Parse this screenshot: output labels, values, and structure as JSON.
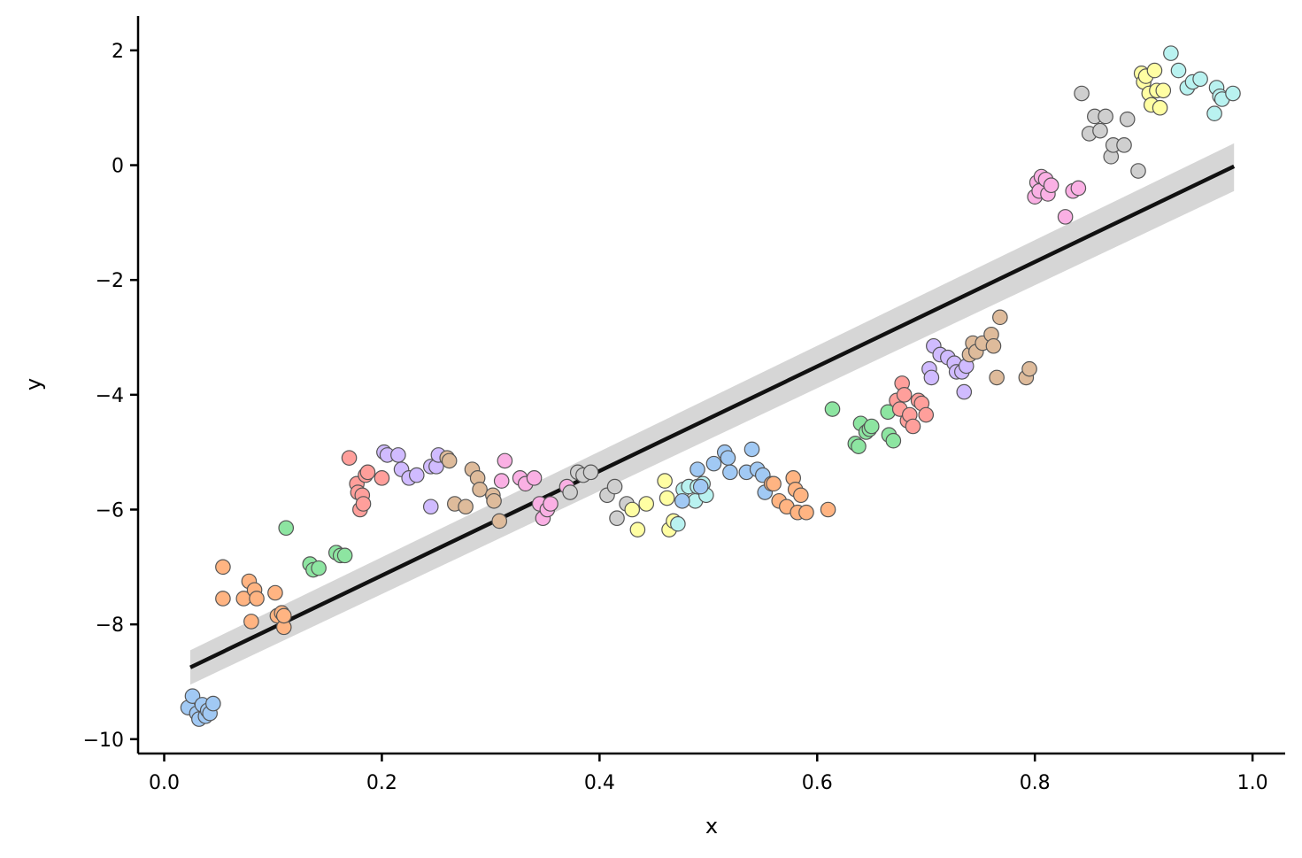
{
  "chart_data": {
    "type": "scatter",
    "xlabel": "x",
    "ylabel": "y",
    "xlim": [
      -0.024,
      1.03
    ],
    "ylim": [
      -10.25,
      2.6
    ],
    "x_ticks": [
      0.0,
      0.2,
      0.4,
      0.6,
      0.8,
      1.0
    ],
    "x_tick_labels": [
      "0.0",
      "0.2",
      "0.4",
      "0.6",
      "0.8",
      "1.0"
    ],
    "y_ticks": [
      -10,
      -8,
      -6,
      -4,
      -2,
      0,
      2
    ],
    "y_tick_labels": [
      "−10",
      "−8",
      "−6",
      "−4",
      "−2",
      "0",
      "2"
    ],
    "grid": false,
    "regression": {
      "x": [
        0.024,
        0.983
      ],
      "y": [
        -8.75,
        -0.02
      ],
      "ci_lower": [
        -9.05,
        -0.45
      ],
      "ci_upper": [
        -8.45,
        0.38
      ],
      "line_color": "#111111",
      "band_color": "#d6d6d6"
    },
    "series": [
      {
        "color": "#a1c9f4",
        "x": [
          0.022,
          0.026,
          0.03,
          0.032,
          0.035,
          0.038,
          0.04,
          0.042,
          0.045
        ],
        "y": [
          -9.45,
          -9.25,
          -9.55,
          -9.65,
          -9.4,
          -9.6,
          -9.5,
          -9.55,
          -9.38
        ]
      },
      {
        "color": "#ffb482",
        "x": [
          0.054,
          0.054,
          0.073,
          0.078,
          0.08,
          0.083,
          0.085,
          0.102,
          0.104,
          0.108,
          0.11,
          0.11
        ],
        "y": [
          -7.0,
          -7.55,
          -7.55,
          -7.25,
          -7.95,
          -7.4,
          -7.55,
          -7.45,
          -7.85,
          -7.8,
          -8.05,
          -7.85
        ]
      },
      {
        "color": "#8de5a1",
        "x": [
          0.112,
          0.134,
          0.137,
          0.142,
          0.158,
          0.162,
          0.166
        ],
        "y": [
          -6.32,
          -6.95,
          -7.05,
          -7.02,
          -6.75,
          -6.8,
          -6.8
        ]
      },
      {
        "color": "#ff9f9b",
        "x": [
          0.17,
          0.177,
          0.178,
          0.18,
          0.182,
          0.183,
          0.185,
          0.187,
          0.2
        ],
        "y": [
          -5.1,
          -5.55,
          -5.7,
          -6.0,
          -5.75,
          -5.9,
          -5.4,
          -5.35,
          -5.45
        ]
      },
      {
        "color": "#d0bbff",
        "x": [
          0.202,
          0.205,
          0.215,
          0.218,
          0.225,
          0.232,
          0.245,
          0.245,
          0.25,
          0.252
        ],
        "y": [
          -5.0,
          -5.05,
          -5.05,
          -5.3,
          -5.45,
          -5.4,
          -5.25,
          -5.95,
          -5.25,
          -5.05
        ]
      },
      {
        "color": "#debb9b",
        "x": [
          0.26,
          0.262,
          0.267,
          0.277,
          0.283,
          0.288,
          0.29,
          0.302,
          0.303,
          0.308
        ],
        "y": [
          -5.1,
          -5.15,
          -5.9,
          -5.95,
          -5.3,
          -5.45,
          -5.65,
          -5.75,
          -5.85,
          -6.2
        ]
      },
      {
        "color": "#fab0e4",
        "x": [
          0.31,
          0.313,
          0.327,
          0.332,
          0.34,
          0.345,
          0.348,
          0.352,
          0.355,
          0.37
        ],
        "y": [
          -5.5,
          -5.15,
          -5.45,
          -5.55,
          -5.45,
          -5.9,
          -6.15,
          -6.0,
          -5.9,
          -5.6
        ]
      },
      {
        "color": "#cfcfcf",
        "x": [
          0.373,
          0.38,
          0.385,
          0.392,
          0.407,
          0.414,
          0.416,
          0.425
        ],
        "y": [
          -5.7,
          -5.35,
          -5.4,
          -5.35,
          -5.75,
          -5.6,
          -6.15,
          -5.9
        ]
      },
      {
        "color": "#fffea3",
        "x": [
          0.43,
          0.435,
          0.443,
          0.46,
          0.462,
          0.464,
          0.468
        ],
        "y": [
          -6.0,
          -6.35,
          -5.9,
          -5.5,
          -5.8,
          -6.35,
          -6.2
        ]
      },
      {
        "color": "#b9f2f0",
        "x": [
          0.472,
          0.477,
          0.482,
          0.488,
          0.49,
          0.495,
          0.498
        ],
        "y": [
          -6.25,
          -5.65,
          -5.6,
          -5.85,
          -5.6,
          -5.55,
          -5.75
        ]
      },
      {
        "color": "#a1c9f4",
        "x": [
          0.476,
          0.49,
          0.493,
          0.505,
          0.515,
          0.518,
          0.52,
          0.535,
          0.54,
          0.545,
          0.55,
          0.552
        ],
        "y": [
          -5.85,
          -5.3,
          -5.6,
          -5.2,
          -5.0,
          -5.1,
          -5.35,
          -5.35,
          -4.95,
          -5.3,
          -5.4,
          -5.7
        ]
      },
      {
        "color": "#ffb482",
        "x": [
          0.558,
          0.56,
          0.565,
          0.572,
          0.578,
          0.58,
          0.582,
          0.585,
          0.59,
          0.61
        ],
        "y": [
          -5.55,
          -5.55,
          -5.85,
          -5.95,
          -5.45,
          -5.65,
          -6.05,
          -5.75,
          -6.05,
          -6.0
        ]
      },
      {
        "color": "#8de5a1",
        "x": [
          0.614,
          0.635,
          0.638,
          0.64,
          0.645,
          0.648,
          0.65,
          0.665,
          0.666,
          0.67
        ],
        "y": [
          -4.25,
          -4.85,
          -4.9,
          -4.5,
          -4.65,
          -4.6,
          -4.55,
          -4.3,
          -4.7,
          -4.8
        ]
      },
      {
        "color": "#ff9f9b",
        "x": [
          0.673,
          0.676,
          0.678,
          0.68,
          0.683,
          0.685,
          0.688,
          0.693,
          0.696,
          0.7
        ],
        "y": [
          -4.1,
          -4.25,
          -3.8,
          -4.0,
          -4.45,
          -4.35,
          -4.55,
          -4.1,
          -4.15,
          -4.35
        ]
      },
      {
        "color": "#d0bbff",
        "x": [
          0.703,
          0.705,
          0.707,
          0.713,
          0.72,
          0.726,
          0.728,
          0.733,
          0.735,
          0.737
        ],
        "y": [
          -3.55,
          -3.7,
          -3.15,
          -3.3,
          -3.35,
          -3.45,
          -3.6,
          -3.6,
          -3.95,
          -3.5
        ]
      },
      {
        "color": "#debb9b",
        "x": [
          0.74,
          0.743,
          0.746,
          0.752,
          0.76,
          0.762,
          0.765,
          0.768,
          0.792,
          0.795
        ],
        "y": [
          -3.3,
          -3.1,
          -3.25,
          -3.1,
          -2.95,
          -3.15,
          -3.7,
          -2.65,
          -3.7,
          -3.55
        ]
      },
      {
        "color": "#fab0e4",
        "x": [
          0.8,
          0.802,
          0.804,
          0.806,
          0.81,
          0.812,
          0.815,
          0.828,
          0.835,
          0.84
        ],
        "y": [
          -0.55,
          -0.3,
          -0.45,
          -0.2,
          -0.25,
          -0.5,
          -0.35,
          -0.9,
          -0.45,
          -0.4
        ]
      },
      {
        "color": "#cfcfcf",
        "x": [
          0.843,
          0.85,
          0.855,
          0.86,
          0.865,
          0.87,
          0.872,
          0.882,
          0.885,
          0.895
        ],
        "y": [
          1.25,
          0.55,
          0.85,
          0.6,
          0.85,
          0.15,
          0.35,
          0.35,
          0.8,
          -0.1
        ]
      },
      {
        "color": "#fffea3",
        "x": [
          0.898,
          0.9,
          0.902,
          0.905,
          0.907,
          0.91,
          0.912,
          0.915,
          0.918
        ],
        "y": [
          1.6,
          1.45,
          1.55,
          1.25,
          1.05,
          1.65,
          1.3,
          1.0,
          1.3
        ]
      },
      {
        "color": "#b9f2f0",
        "x": [
          0.925,
          0.932,
          0.94,
          0.945,
          0.952,
          0.965,
          0.967,
          0.97,
          0.972,
          0.982
        ],
        "y": [
          1.95,
          1.65,
          1.35,
          1.45,
          1.5,
          0.9,
          1.35,
          1.2,
          1.15,
          1.25
        ]
      }
    ]
  }
}
